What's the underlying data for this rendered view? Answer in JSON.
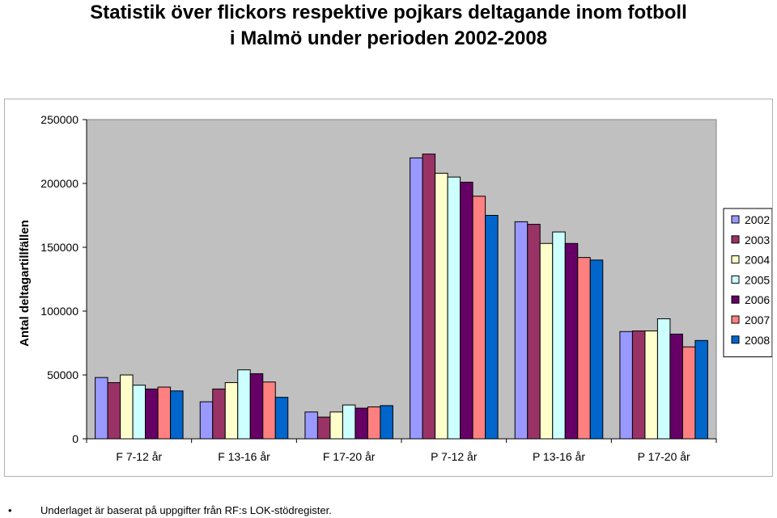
{
  "title": {
    "line1": "Statistik över flickors respektive pojkars deltagande inom fotboll",
    "line2": "i Malmö under perioden 2002-2008"
  },
  "footnote": {
    "bullet": "•",
    "text": "Underlaget är baserat på uppgifter från RF:s LOK-stödregister."
  },
  "chart_data": {
    "type": "bar",
    "ylabel": "Antal deltagartillfällen",
    "xlabel": "",
    "ylim": [
      0,
      250000
    ],
    "yticks": [
      0,
      50000,
      100000,
      150000,
      200000,
      250000
    ],
    "grid": false,
    "legend_position": "right",
    "plot_background": "#c0c0c0",
    "categories": [
      "F 7-12 år",
      "F 13-16 år",
      "F 17-20 år",
      "P 7-12 år",
      "P 13-16 år",
      "P 17-20 år"
    ],
    "series": [
      {
        "name": "2002",
        "color": "#9999ff",
        "values": [
          48000,
          29000,
          21000,
          220000,
          170000,
          84000
        ]
      },
      {
        "name": "2003",
        "color": "#993366",
        "values": [
          44000,
          39000,
          17000,
          223000,
          168000,
          84500
        ]
      },
      {
        "name": "2004",
        "color": "#ffffcc",
        "values": [
          50000,
          44000,
          21000,
          208000,
          153000,
          84500
        ]
      },
      {
        "name": "2005",
        "color": "#ccffff",
        "values": [
          42000,
          54000,
          26500,
          205000,
          162000,
          94000
        ]
      },
      {
        "name": "2006",
        "color": "#660066",
        "values": [
          39000,
          51000,
          24000,
          201000,
          153000,
          82000
        ]
      },
      {
        "name": "2007",
        "color": "#ff8080",
        "values": [
          40500,
          44500,
          25000,
          190000,
          142000,
          72000
        ]
      },
      {
        "name": "2008",
        "color": "#0066cc",
        "values": [
          37500,
          32500,
          26000,
          175000,
          140000,
          77000
        ]
      }
    ]
  }
}
